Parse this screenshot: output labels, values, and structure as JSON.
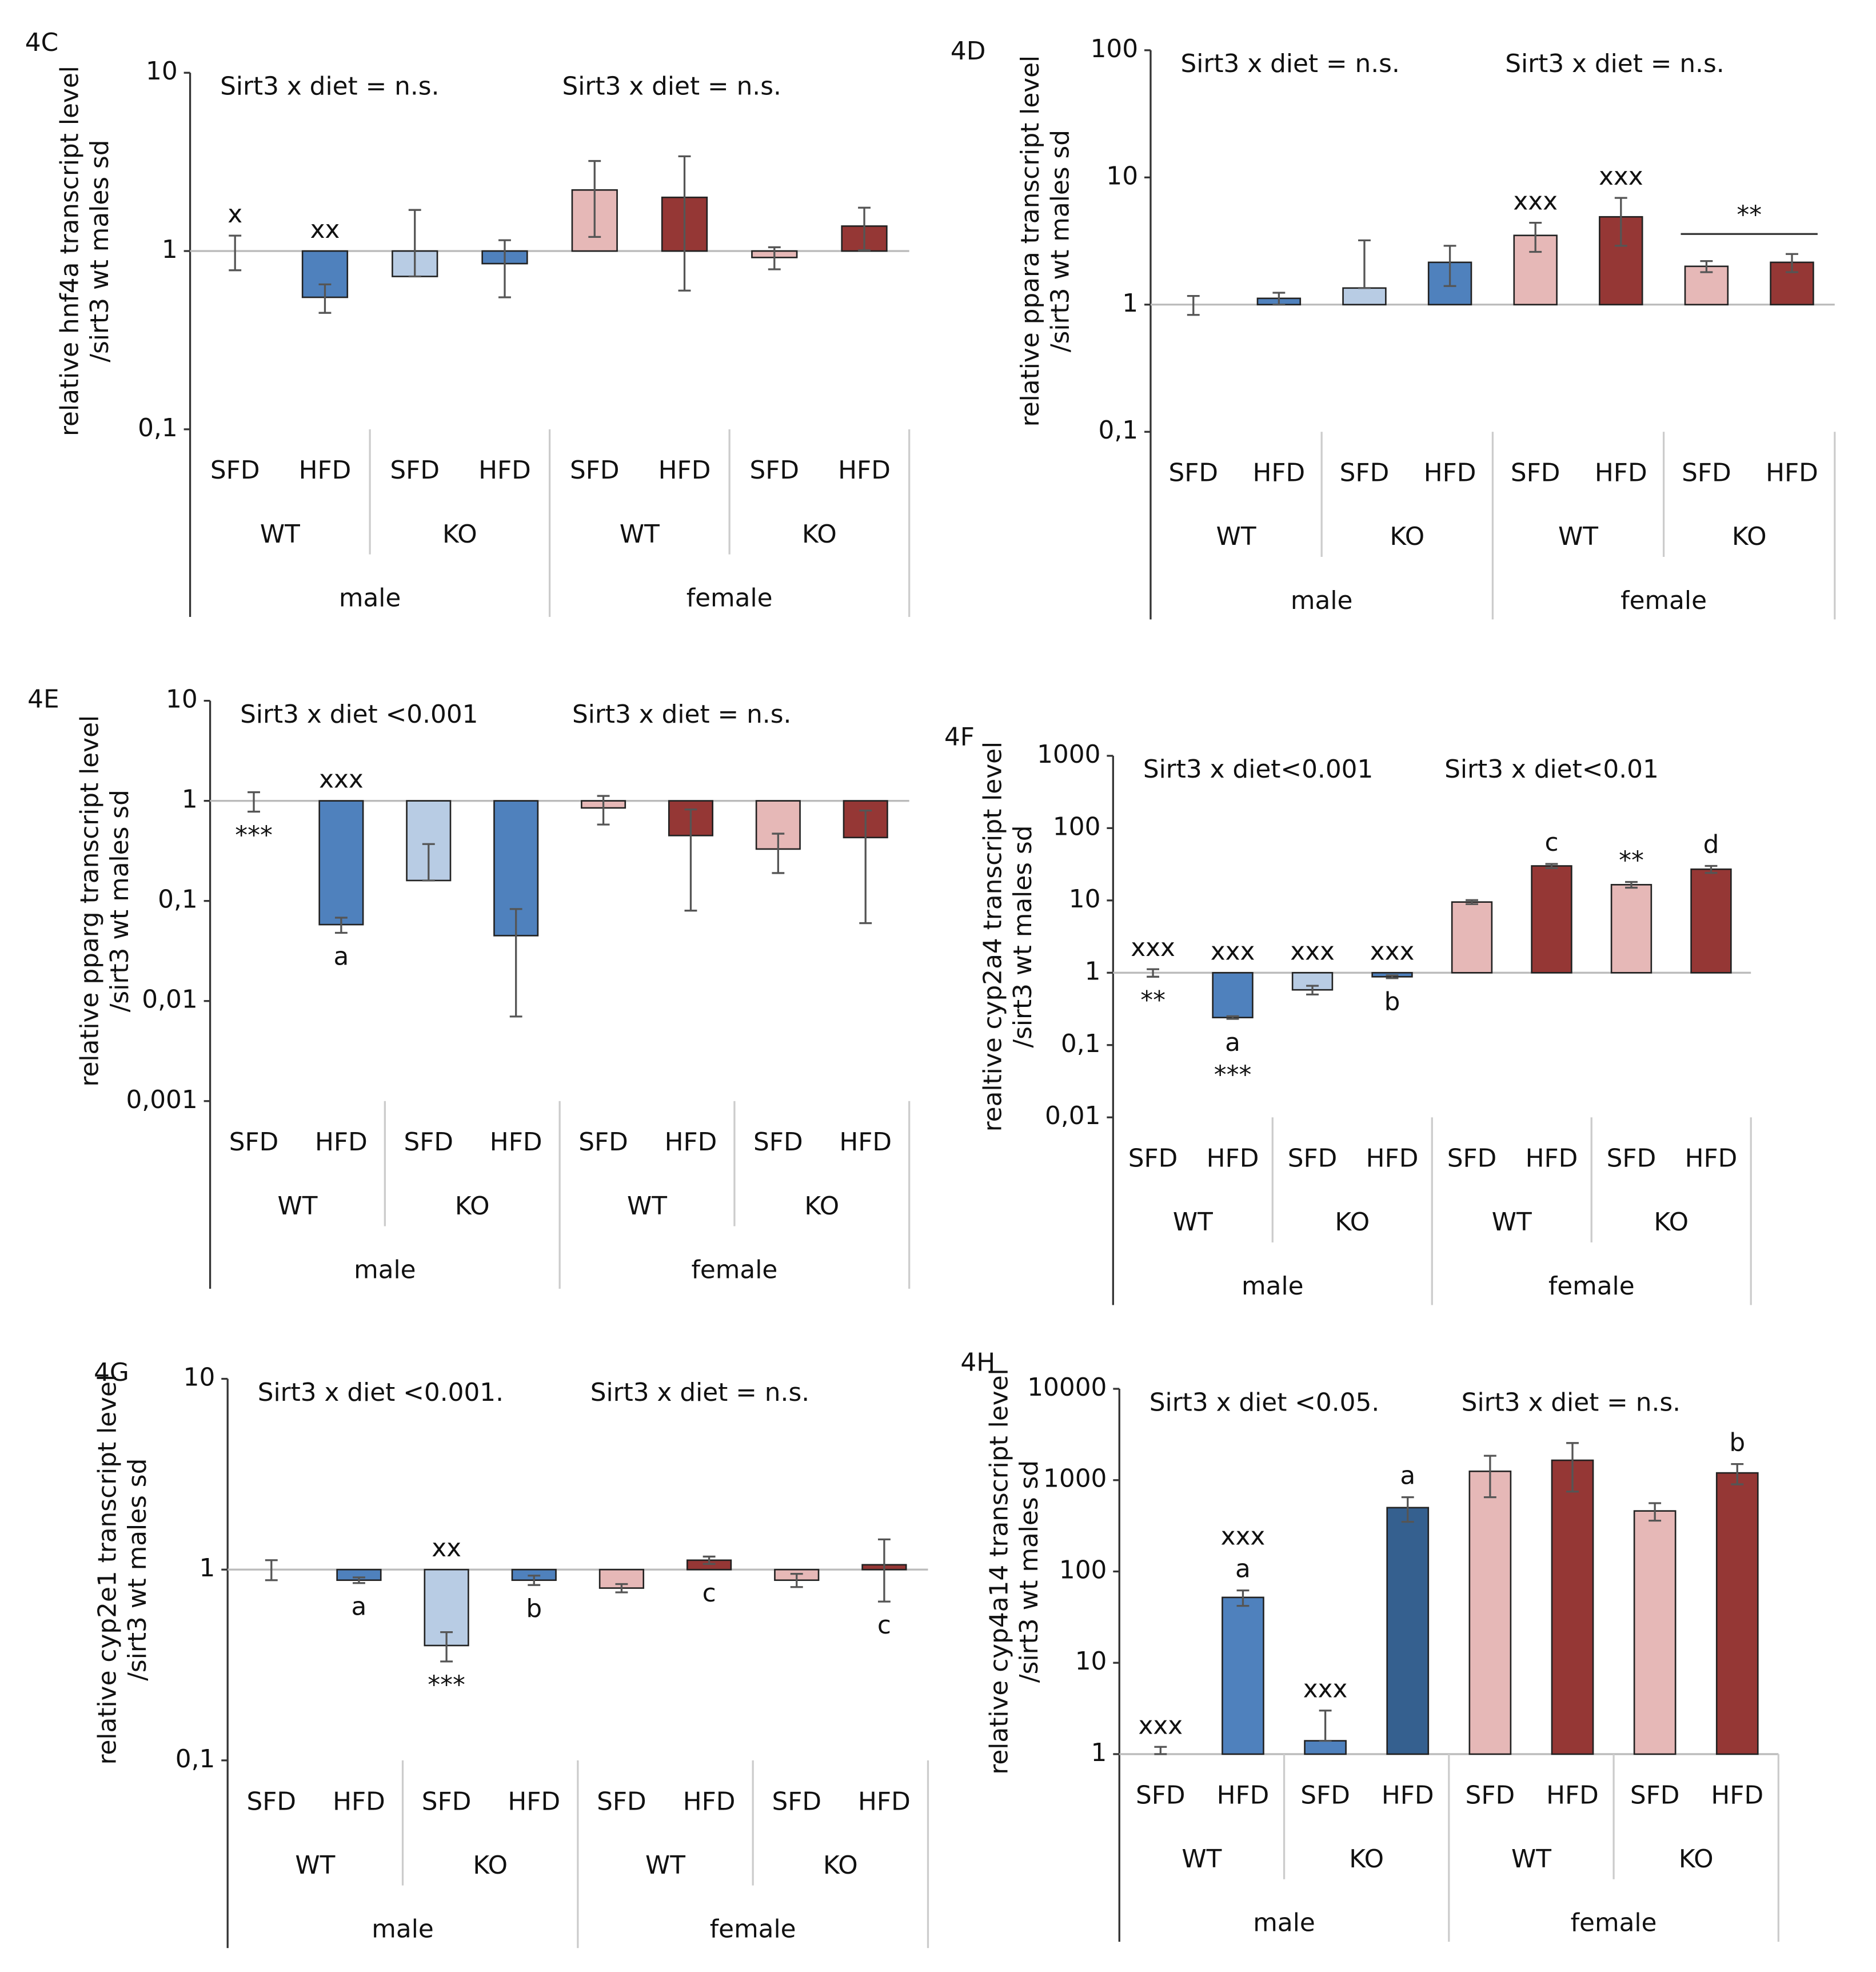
{
  "chart_data": [
    {
      "type": "bar",
      "title": "4C",
      "ylabel": [
        "relative hnf4a transcript level",
        "/sirt3 wt males sd"
      ],
      "log": true,
      "ylim": [
        0.1,
        10
      ],
      "yticks": [
        {
          "value": 0.1,
          "label": "0,1"
        },
        1,
        10
      ],
      "categories": [
        "SFD",
        "HFD",
        "SFD",
        "HFD",
        "SFD",
        "HFD",
        "SFD",
        "HFD"
      ],
      "groups": [
        "WT",
        "KO",
        "WT",
        "KO"
      ],
      "sexes": [
        "male",
        "female"
      ],
      "values": [
        1,
        0.55,
        0.72,
        0.85,
        2.2,
        2.0,
        0.92,
        1.38
      ],
      "errors": [
        0.22,
        0.1,
        0.98,
        0.3,
        1.0,
        1.4,
        0.13,
        0.37
      ],
      "colors": [
        "#4f81bd",
        "#4f81bd",
        "#b8cce4",
        "#4f81bd",
        "#e6b8b7",
        "#953735",
        "#e6b8b7",
        "#953735"
      ],
      "notes": [
        "Sirt3 x diet = n.s.",
        "Sirt3 x diet = n.s."
      ],
      "annotations": [
        {
          "text": "x",
          "bars": [
            0
          ],
          "side": "above"
        },
        {
          "text": "xx",
          "bars": [
            1
          ],
          "side": "above"
        }
      ]
    },
    {
      "type": "bar",
      "title": "4D",
      "ylabel": [
        "relative ppara transcript level",
        "/sirt3 wt males sd"
      ],
      "log": true,
      "ylim": [
        0.1,
        100
      ],
      "yticks": [
        {
          "value": 0.1,
          "label": "0,1"
        },
        1,
        10,
        100
      ],
      "categories": [
        "SFD",
        "HFD",
        "SFD",
        "HFD",
        "SFD",
        "HFD",
        "SFD",
        "HFD"
      ],
      "groups": [
        "WT",
        "KO",
        "WT",
        "KO"
      ],
      "sexes": [
        "male",
        "female"
      ],
      "values": [
        1,
        1.12,
        1.35,
        2.15,
        3.5,
        4.9,
        2.0,
        2.15
      ],
      "errors": [
        0.17,
        0.12,
        1.85,
        0.75,
        0.9,
        2.0,
        0.2,
        0.35
      ],
      "colors": [
        "#4f81bd",
        "#4f81bd",
        "#b8cce4",
        "#4f81bd",
        "#e6b8b7",
        "#953735",
        "#e6b8b7",
        "#953735"
      ],
      "notes": [
        "Sirt3 x diet = n.s.",
        "Sirt3 x diet = n.s."
      ],
      "annotations": [
        {
          "text": "xxx",
          "bars": [
            4
          ],
          "side": "above"
        },
        {
          "text": "xxx",
          "bars": [
            5
          ],
          "side": "above"
        },
        {
          "text": "**",
          "bars": [
            6,
            7
          ],
          "side": "above"
        }
      ]
    },
    {
      "type": "bar",
      "title": "4E",
      "ylabel": [
        "relative pparg transcript level",
        "/sirt3 wt males sd"
      ],
      "log": true,
      "ylim": [
        0.001,
        10
      ],
      "yticks": [
        {
          "value": 0.001,
          "label": "0,001"
        },
        {
          "value": 0.01,
          "label": "0,01"
        },
        {
          "value": 0.1,
          "label": "0,1"
        },
        1,
        10
      ],
      "categories": [
        "SFD",
        "HFD",
        "SFD",
        "HFD",
        "SFD",
        "HFD",
        "SFD",
        "HFD"
      ],
      "groups": [
        "WT",
        "KO",
        "WT",
        "KO"
      ],
      "sexes": [
        "male",
        "female"
      ],
      "values": [
        1,
        0.058,
        0.16,
        0.045,
        0.85,
        0.45,
        0.33,
        0.43
      ],
      "errors": [
        0.22,
        0.01,
        0.21,
        0.038,
        0.27,
        0.37,
        0.14,
        0.37
      ],
      "colors": [
        "#4f81bd",
        "#4f81bd",
        "#b8cce4",
        "#4f81bd",
        "#e6b8b7",
        "#953735",
        "#e6b8b7",
        "#953735"
      ],
      "notes": [
        "Sirt3 x diet <0.001",
        "Sirt3 x diet = n.s."
      ],
      "annotations": [
        {
          "text": "***",
          "bars": [
            0
          ],
          "side": "below"
        },
        {
          "text": "xxx",
          "bars": [
            1
          ],
          "side": "above"
        },
        {
          "text": "a",
          "bars": [
            1
          ],
          "side": "below"
        }
      ]
    },
    {
      "type": "bar",
      "title": "4F",
      "ylabel": [
        "realtive cyp2a4 transcript level",
        "/sirt3 wt males sd"
      ],
      "log": true,
      "ylim": [
        0.01,
        1000
      ],
      "yticks": [
        {
          "value": 0.01,
          "label": "0,01"
        },
        {
          "value": 0.1,
          "label": "0,1"
        },
        1,
        10,
        100,
        1000
      ],
      "categories": [
        "SFD",
        "HFD",
        "SFD",
        "HFD",
        "SFD",
        "HFD",
        "SFD",
        "HFD"
      ],
      "groups": [
        "WT",
        "KO",
        "WT",
        "KO"
      ],
      "sexes": [
        "male",
        "female"
      ],
      "values": [
        1,
        0.24,
        0.58,
        0.88,
        9.5,
        30,
        16.5,
        27
      ],
      "errors": [
        0.12,
        0.01,
        0.08,
        0.04,
        0.6,
        2,
        1.5,
        3
      ],
      "colors": [
        "#4f81bd",
        "#4f81bd",
        "#b8cce4",
        "#4f81bd",
        "#e6b8b7",
        "#953735",
        "#e6b8b7",
        "#953735"
      ],
      "notes": [
        "Sirt3 x diet<0.001",
        "Sirt3 x diet<0.01"
      ],
      "annotations": [
        {
          "text": "xxx",
          "bars": [
            0
          ],
          "side": "above"
        },
        {
          "text": "**",
          "bars": [
            0
          ],
          "side": "below"
        },
        {
          "text": "xxx",
          "bars": [
            1
          ],
          "side": "above"
        },
        {
          "text": "a",
          "bars": [
            1
          ],
          "side": "below"
        },
        {
          "text": "***",
          "bars": [
            1
          ],
          "side": "below"
        },
        {
          "text": "xxx",
          "bars": [
            2
          ],
          "side": "above"
        },
        {
          "text": "xxx",
          "bars": [
            3
          ],
          "side": "above"
        },
        {
          "text": "b",
          "bars": [
            3
          ],
          "side": "below"
        },
        {
          "text": "c",
          "bars": [
            5
          ],
          "side": "above"
        },
        {
          "text": "**",
          "bars": [
            6
          ],
          "side": "above"
        },
        {
          "text": "d",
          "bars": [
            7
          ],
          "side": "above"
        }
      ]
    },
    {
      "type": "bar",
      "title": "4G",
      "ylabel": [
        "relative cyp2e1 transcript level",
        "/sirt3 wt males sd"
      ],
      "log": true,
      "ylim": [
        0.1,
        10
      ],
      "yticks": [
        {
          "value": 0.1,
          "label": "0,1"
        },
        1,
        10
      ],
      "categories": [
        "SFD",
        "HFD",
        "SFD",
        "HFD",
        "SFD",
        "HFD",
        "SFD",
        "HFD"
      ],
      "groups": [
        "WT",
        "KO",
        "WT",
        "KO"
      ],
      "sexes": [
        "male",
        "female"
      ],
      "values": [
        1,
        0.88,
        0.4,
        0.88,
        0.8,
        1.12,
        0.88,
        1.06
      ],
      "errors": [
        0.12,
        0.03,
        0.07,
        0.05,
        0.04,
        0.05,
        0.07,
        0.38
      ],
      "colors": [
        "#4f81bd",
        "#4f81bd",
        "#b8cce4",
        "#4f81bd",
        "#e6b8b7",
        "#953735",
        "#e6b8b7",
        "#953735"
      ],
      "notes": [
        "Sirt3 x diet <0.001.",
        "Sirt3 x diet = n.s."
      ],
      "annotations": [
        {
          "text": "a",
          "bars": [
            1
          ],
          "side": "below"
        },
        {
          "text": "xx",
          "bars": [
            2
          ],
          "side": "above"
        },
        {
          "text": "***",
          "bars": [
            2
          ],
          "side": "below"
        },
        {
          "text": "b",
          "bars": [
            3
          ],
          "side": "below"
        },
        {
          "text": "c",
          "bars": [
            5
          ],
          "side": "below"
        },
        {
          "text": "c",
          "bars": [
            7
          ],
          "side": "below"
        }
      ]
    },
    {
      "type": "bar",
      "title": "4H",
      "ylabel": [
        "relative cyp4a14 transcript level",
        "/sirt3 wt males sd"
      ],
      "log": true,
      "ylim": [
        1,
        10000
      ],
      "yticks": [
        1,
        10,
        100,
        1000,
        10000
      ],
      "categories": [
        "SFD",
        "HFD",
        "SFD",
        "HFD",
        "SFD",
        "HFD",
        "SFD",
        "HFD"
      ],
      "groups": [
        "WT",
        "KO",
        "WT",
        "KO"
      ],
      "sexes": [
        "male",
        "female"
      ],
      "values": [
        1,
        52,
        1.4,
        500,
        1250,
        1650,
        460,
        1200
      ],
      "errors": [
        0.2,
        10,
        1.6,
        150,
        600,
        900,
        100,
        300
      ],
      "colors": [
        "#4f81bd",
        "#4f81bd",
        "#4f81bd",
        "#35608f",
        "#e6b8b7",
        "#953735",
        "#e6b8b7",
        "#953735"
      ],
      "notes": [
        "Sirt3 x diet <0.05.",
        "Sirt3 x diet = n.s."
      ],
      "annotations": [
        {
          "text": "xxx",
          "bars": [
            0
          ],
          "side": "above"
        },
        {
          "text": "a",
          "bars": [
            1
          ],
          "side": "above"
        },
        {
          "text": "xxx",
          "bars": [
            1
          ],
          "side": "above"
        },
        {
          "text": "xxx",
          "bars": [
            2
          ],
          "side": "above"
        },
        {
          "text": "a",
          "bars": [
            3
          ],
          "side": "above"
        },
        {
          "text": "b",
          "bars": [
            7
          ],
          "side": "above"
        }
      ]
    }
  ]
}
